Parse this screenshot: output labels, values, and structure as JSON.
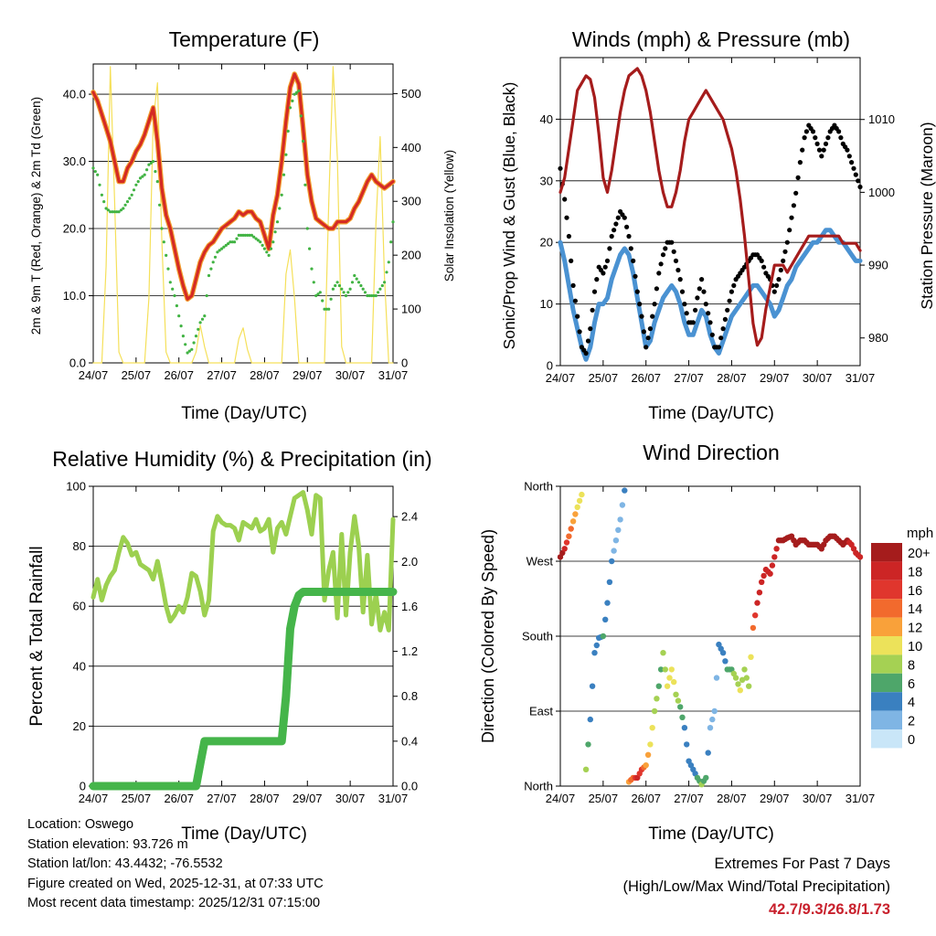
{
  "x_ticks": [
    "24/07",
    "25/07",
    "26/07",
    "27/07",
    "28/07",
    "29/07",
    "30/07",
    "31/07"
  ],
  "x_label": "Time (Day/UTC)",
  "colors": {
    "temp": "#d42a24",
    "temp_halo": "#f2a030",
    "dew": "#41b343",
    "solar": "#f5e05a",
    "wind": "#4a92d2",
    "gust": "#000000",
    "pressure": "#a51c1c",
    "rh": "#9cd050",
    "precip": "#45b54a"
  },
  "speed_legend": {
    "unit": "mph",
    "labels": [
      "20+",
      "18",
      "16",
      "14",
      "12",
      "10",
      "8",
      "6",
      "4",
      "2",
      "0"
    ],
    "colors": [
      "#a51c1c",
      "#cc2525",
      "#e0362d",
      "#f26a2d",
      "#f9a13a",
      "#ece25a",
      "#a5d153",
      "#4ea66a",
      "#3a80c0",
      "#7fb5e4",
      "#c9e6f8"
    ]
  },
  "chart_data": [
    {
      "type": "line",
      "title": "Temperature (F)",
      "ylabel": "2m & 9m T (Red, Orange) & 2m Td (Green)",
      "y2label": "Solar Insolation (Yellow)",
      "ylim": [
        0,
        44.5
      ],
      "y_ticks": [
        "0.0",
        "10.0",
        "20.0",
        "30.0",
        "40.0"
      ],
      "y2lim": [
        0,
        555
      ],
      "y2_ticks": [
        "0",
        "100",
        "200",
        "300",
        "400",
        "500"
      ],
      "x": [
        0,
        0.1,
        0.2,
        0.3,
        0.4,
        0.5,
        0.6,
        0.7,
        0.8,
        0.9,
        1.0,
        1.1,
        1.2,
        1.3,
        1.4,
        1.5,
        1.6,
        1.7,
        1.8,
        1.9,
        2.0,
        2.1,
        2.2,
        2.3,
        2.4,
        2.5,
        2.6,
        2.7,
        2.8,
        2.9,
        3.0,
        3.1,
        3.2,
        3.3,
        3.4,
        3.5,
        3.6,
        3.7,
        3.8,
        3.9,
        4.0,
        4.1,
        4.2,
        4.3,
        4.4,
        4.5,
        4.6,
        4.7,
        4.8,
        4.9,
        5.0,
        5.1,
        5.2,
        5.3,
        5.4,
        5.5,
        5.6,
        5.7,
        5.8,
        5.9,
        6.0,
        6.1,
        6.2,
        6.3,
        6.4,
        6.5,
        6.6,
        6.7,
        6.8,
        6.9,
        7.0
      ],
      "series": [
        {
          "name": "2m T",
          "values": [
            40.3,
            39,
            37,
            35,
            33,
            30,
            27,
            27,
            29,
            30,
            31.5,
            32.5,
            34,
            36,
            38,
            33,
            26,
            22,
            20,
            17,
            14,
            11.5,
            9.5,
            10,
            12.5,
            15,
            16.5,
            17.5,
            18,
            19,
            20,
            20.5,
            21,
            21.5,
            22.5,
            22,
            22.5,
            22.5,
            21.5,
            21,
            19,
            17,
            22,
            25,
            30,
            36,
            41,
            43,
            41.5,
            35,
            28,
            24,
            21.5,
            21,
            20.5,
            20,
            20,
            21,
            21,
            21,
            21.5,
            23,
            24,
            25.5,
            27,
            28,
            27,
            26.5,
            26,
            26.5,
            27
          ]
        },
        {
          "name": "2m Td",
          "values": [
            29,
            28,
            25,
            23,
            22.5,
            22.5,
            22.5,
            23,
            24,
            25,
            26.5,
            27.5,
            28,
            29.5,
            30,
            27,
            20,
            16,
            12,
            10,
            7,
            4,
            1.5,
            2,
            4,
            6,
            7,
            13,
            15,
            16.5,
            17,
            17.5,
            18,
            18,
            19,
            19,
            19,
            19,
            18.5,
            18,
            17,
            16,
            18,
            21,
            25,
            31,
            38,
            40,
            40.5,
            33,
            20,
            14,
            10,
            10.5,
            8,
            8,
            11,
            12,
            11,
            10,
            11,
            13,
            12,
            11,
            10,
            10,
            10,
            11,
            12,
            15,
            21
          ]
        },
        {
          "name": "Solar",
          "y_axis": "right",
          "values": [
            0,
            0,
            0,
            180,
            550,
            300,
            20,
            0,
            0,
            0,
            0,
            0,
            0,
            120,
            450,
            520,
            230,
            20,
            0,
            0,
            0,
            0,
            0,
            0,
            20,
            70,
            30,
            0,
            0,
            0,
            0,
            0,
            0,
            0,
            45,
            65,
            25,
            0,
            0,
            0,
            0,
            0,
            0,
            0,
            0,
            165,
            210,
            120,
            0,
            0,
            0,
            0,
            0,
            0,
            0,
            300,
            550,
            380,
            30,
            0,
            0,
            0,
            0,
            0,
            0,
            0,
            260,
            420,
            160,
            0,
            0
          ]
        }
      ]
    },
    {
      "type": "line",
      "title": "Winds (mph) & Pressure (mb)",
      "ylabel": "Sonic/Prop Wind & Gust (Blue, Black)",
      "y2label": "Station Pressure (Maroon)",
      "ylim": [
        0,
        50
      ],
      "y_ticks": [
        "0",
        "10",
        "20",
        "30",
        "40"
      ],
      "y2lim": [
        976.2,
        1018.5
      ],
      "y2_ticks": [
        "980",
        "990",
        "1000",
        "1010"
      ],
      "x": [
        0,
        0.1,
        0.2,
        0.3,
        0.4,
        0.5,
        0.6,
        0.7,
        0.8,
        0.9,
        1.0,
        1.1,
        1.2,
        1.3,
        1.4,
        1.5,
        1.6,
        1.7,
        1.8,
        1.9,
        2.0,
        2.1,
        2.2,
        2.3,
        2.4,
        2.5,
        2.6,
        2.7,
        2.8,
        2.9,
        3.0,
        3.1,
        3.2,
        3.3,
        3.4,
        3.5,
        3.6,
        3.7,
        3.8,
        3.9,
        4.0,
        4.1,
        4.2,
        4.3,
        4.4,
        4.5,
        4.6,
        4.7,
        4.8,
        4.9,
        5.0,
        5.1,
        5.2,
        5.3,
        5.4,
        5.5,
        5.6,
        5.7,
        5.8,
        5.9,
        6.0,
        6.1,
        6.2,
        6.3,
        6.4,
        6.5,
        6.6,
        6.7,
        6.8,
        6.9,
        7.0
      ],
      "series": [
        {
          "name": "Sonic/Prop Wind",
          "values": [
            20,
            17,
            13,
            9,
            6,
            3,
            1,
            3,
            7,
            10,
            10,
            11,
            14,
            16,
            18,
            19,
            18,
            15,
            11,
            7,
            3,
            4,
            7,
            9,
            11,
            12,
            13,
            12,
            10,
            7,
            5,
            5,
            7,
            9,
            8,
            5,
            3,
            2,
            4,
            6,
            8,
            9,
            10,
            11,
            12,
            13,
            13,
            12,
            11,
            10,
            8,
            9,
            11,
            13,
            14,
            16,
            17,
            18,
            19,
            20,
            20,
            21,
            22,
            22,
            21,
            20,
            20,
            19,
            18,
            17,
            17
          ]
        },
        {
          "name": "Gust",
          "values": [
            32,
            27,
            21,
            13,
            8,
            3,
            2,
            6,
            12,
            16,
            15,
            17,
            21,
            23,
            25,
            24,
            21,
            17,
            12,
            8,
            3,
            6,
            10,
            15,
            18,
            20,
            20,
            17,
            14,
            10,
            7,
            7,
            11,
            14,
            10,
            7,
            3,
            3,
            6,
            9,
            12,
            14,
            15,
            16,
            17,
            18,
            18,
            17,
            15,
            14,
            12,
            14,
            17,
            20,
            24,
            28,
            33,
            37,
            39,
            38,
            36,
            34,
            36,
            38,
            39,
            38,
            36,
            35,
            33,
            31,
            29
          ]
        },
        {
          "name": "Station Pressure",
          "y_axis": "right",
          "values": [
            1000,
            1002,
            1006,
            1010,
            1014,
            1015,
            1016,
            1015.5,
            1013,
            1008,
            1002,
            1000,
            1003,
            1007,
            1011,
            1014,
            1016,
            1016.5,
            1017,
            1016,
            1014,
            1011,
            1007,
            1003,
            1000,
            998,
            998,
            1000,
            1003,
            1007,
            1010,
            1011,
            1012,
            1013,
            1014,
            1013,
            1012,
            1011,
            1010,
            1008,
            1006,
            1003,
            999,
            994,
            988,
            982,
            979,
            980,
            984,
            987,
            990,
            990,
            990,
            989,
            990,
            991,
            992,
            993,
            994,
            994,
            994,
            994,
            994,
            994,
            994,
            994,
            993,
            993,
            993,
            993,
            992
          ]
        }
      ]
    },
    {
      "type": "line",
      "title": "Relative Humidity (%) & Precipitation (in)",
      "ylabel": "Percent & Total Rainfall",
      "ylim": [
        0,
        100
      ],
      "y_ticks": [
        "0",
        "20",
        "40",
        "60",
        "80",
        "100"
      ],
      "y2lim": [
        0,
        2.67
      ],
      "y2_ticks": [
        "0.0",
        "0.4",
        "0.8",
        "1.2",
        "1.6",
        "2.0",
        "2.4"
      ],
      "x": [
        0,
        0.1,
        0.2,
        0.3,
        0.4,
        0.5,
        0.6,
        0.7,
        0.8,
        0.9,
        1.0,
        1.1,
        1.2,
        1.3,
        1.4,
        1.5,
        1.6,
        1.7,
        1.8,
        1.9,
        2.0,
        2.1,
        2.2,
        2.3,
        2.4,
        2.5,
        2.6,
        2.7,
        2.8,
        2.9,
        3.0,
        3.1,
        3.2,
        3.3,
        3.4,
        3.5,
        3.6,
        3.7,
        3.8,
        3.9,
        4.0,
        4.1,
        4.2,
        4.3,
        4.4,
        4.5,
        4.6,
        4.7,
        4.8,
        4.9,
        5.0,
        5.1,
        5.2,
        5.3,
        5.4,
        5.5,
        5.6,
        5.7,
        5.8,
        5.9,
        6.0,
        6.1,
        6.2,
        6.3,
        6.4,
        6.5,
        6.6,
        6.7,
        6.8,
        6.9,
        7.0
      ],
      "series": [
        {
          "name": "Relative Humidity",
          "values": [
            63,
            69,
            62,
            67,
            70,
            72,
            78,
            83,
            81,
            77,
            78,
            74,
            73,
            72,
            69,
            75,
            68,
            60,
            55,
            57,
            60,
            58,
            63,
            71,
            70,
            65,
            57,
            62,
            85,
            90,
            88,
            87,
            87,
            86,
            82,
            88,
            87,
            86,
            89,
            85,
            86,
            89,
            78,
            86,
            88,
            84,
            90,
            96,
            97,
            98,
            92,
            84,
            97,
            96,
            62,
            72,
            78,
            56,
            84,
            57,
            78,
            90,
            80,
            58,
            77,
            54,
            64,
            52,
            58,
            52,
            89
          ]
        },
        {
          "name": "Total Rainfall",
          "y_axis": "right",
          "values": [
            0,
            0,
            0,
            0,
            0,
            0,
            0,
            0,
            0,
            0,
            0,
            0,
            0,
            0,
            0,
            0,
            0,
            0,
            0,
            0,
            0,
            0,
            0,
            0,
            0,
            0.2,
            0.4,
            0.4,
            0.4,
            0.4,
            0.4,
            0.4,
            0.4,
            0.4,
            0.4,
            0.4,
            0.4,
            0.4,
            0.4,
            0.4,
            0.4,
            0.4,
            0.4,
            0.4,
            0.4,
            0.8,
            1.4,
            1.6,
            1.7,
            1.73,
            1.73,
            1.73,
            1.73,
            1.73,
            1.73,
            1.73,
            1.73,
            1.73,
            1.73,
            1.73,
            1.73,
            1.73,
            1.73,
            1.73,
            1.73,
            1.73,
            1.73,
            1.73,
            1.73,
            1.73,
            1.73
          ]
        }
      ]
    },
    {
      "type": "scatter",
      "title": "Wind Direction",
      "ylabel": "Direction (Colored By Speed)",
      "ylim": [
        0,
        360
      ],
      "y_ticks": [
        "North",
        "East",
        "South",
        "West",
        "North"
      ],
      "x": [
        0,
        0.1,
        0.2,
        0.3,
        0.4,
        0.5,
        0.6,
        0.7,
        0.8,
        0.9,
        1.0,
        1.1,
        1.2,
        1.3,
        1.4,
        1.5,
        1.6,
        1.7,
        1.8,
        1.9,
        2.0,
        2.1,
        2.2,
        2.3,
        2.4,
        2.5,
        2.6,
        2.7,
        2.8,
        2.9,
        3.0,
        3.1,
        3.2,
        3.3,
        3.4,
        3.5,
        3.6,
        3.7,
        3.8,
        3.9,
        4.0,
        4.1,
        4.2,
        4.3,
        4.4,
        4.5,
        4.6,
        4.7,
        4.8,
        4.9,
        5.0,
        5.1,
        5.2,
        5.3,
        5.4,
        5.5,
        5.6,
        5.7,
        5.8,
        5.9,
        6.0,
        6.1,
        6.2,
        6.3,
        6.4,
        6.5,
        6.6,
        6.7,
        6.8,
        6.9,
        7.0
      ],
      "direction": [
        275,
        285,
        300,
        318,
        335,
        350,
        20,
        80,
        160,
        178,
        180,
        220,
        270,
        295,
        320,
        355,
        5,
        10,
        10,
        20,
        25,
        50,
        90,
        120,
        160,
        120,
        140,
        110,
        95,
        70,
        30,
        20,
        10,
        2,
        10,
        70,
        90,
        170,
        160,
        140,
        140,
        130,
        115,
        140,
        120,
        190,
        220,
        245,
        260,
        255,
        275,
        295,
        295,
        298,
        300,
        290,
        295,
        295,
        290,
        290,
        290,
        285,
        295,
        300,
        300,
        295,
        290,
        295,
        290,
        280,
        275
      ],
      "speed": [
        20,
        18,
        14,
        12,
        10,
        9,
        8,
        4,
        3,
        4,
        5,
        4,
        3,
        2,
        2,
        3,
        12,
        14,
        17,
        16,
        12,
        10,
        8,
        6,
        7,
        9,
        10,
        8,
        6,
        4,
        3,
        3,
        6,
        7,
        6,
        2,
        2,
        3,
        4,
        5,
        6,
        8,
        9,
        7,
        7,
        14,
        18,
        18,
        18,
        17,
        18,
        19,
        20,
        20,
        20,
        20,
        20,
        20,
        20,
        20,
        20,
        21,
        21,
        20,
        20,
        20,
        20,
        19,
        18,
        17,
        17
      ]
    }
  ],
  "meta": {
    "location": "Location: Oswego",
    "elevation": "Station elevation: 93.726 m",
    "latlon": "Station lat/lon: 43.4432; -76.5532",
    "created": "Figure created on Wed, 2025-12-31, at 07:33 UTC",
    "recent": "Most recent data timestamp: 2025/12/31 07:15:00"
  },
  "extremes": {
    "title": "Extremes For Past 7 Days",
    "subtitle": "(High/Low/Max Wind/Total Precipitation)",
    "values": "42.7/9.3/26.8/1.73"
  }
}
